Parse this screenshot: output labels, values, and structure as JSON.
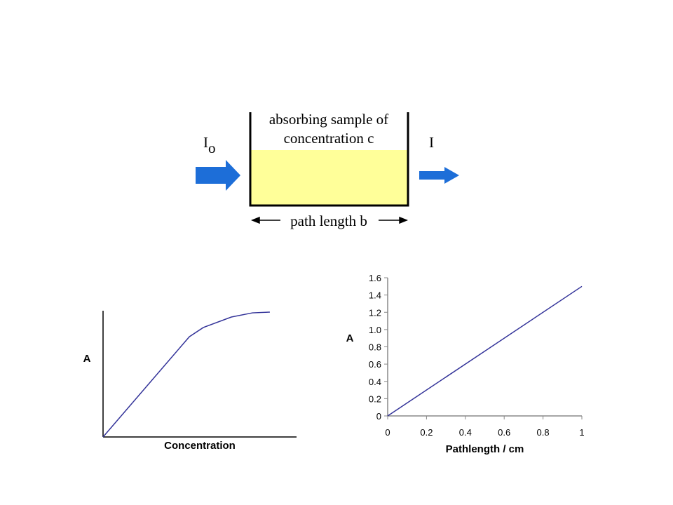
{
  "diagram": {
    "sample_label": [
      "absorbing sample of",
      "concentration c"
    ],
    "incident": {
      "symbol": "I",
      "subscript": "o"
    },
    "transmitted": "I",
    "path_label": "path length b"
  },
  "chart_data": [
    {
      "type": "line",
      "xlabel": "Concentration",
      "ylabel": "A",
      "x": [
        0,
        0.446,
        0.518,
        0.663,
        0.772,
        0.862
      ],
      "values": [
        0,
        0.794,
        0.867,
        0.95,
        0.983,
        0.989
      ],
      "xlim": [
        0,
        1
      ],
      "ylim": [
        0,
        1
      ],
      "color": "#333399"
    },
    {
      "type": "line",
      "xlabel": "Pathlength / cm",
      "ylabel": "A",
      "x": [
        0,
        1
      ],
      "values": [
        0,
        1.5
      ],
      "xlim": [
        0,
        1
      ],
      "ylim": [
        0,
        1.6
      ],
      "xticks": [
        0,
        0.2,
        0.4,
        0.6,
        0.8,
        1
      ],
      "yticks": [
        0,
        0.2,
        0.4,
        0.6,
        0.8,
        {
          "value": 1,
          "label": "1.0"
        },
        1.2,
        1.4,
        1.6
      ],
      "color": "#333399"
    }
  ]
}
